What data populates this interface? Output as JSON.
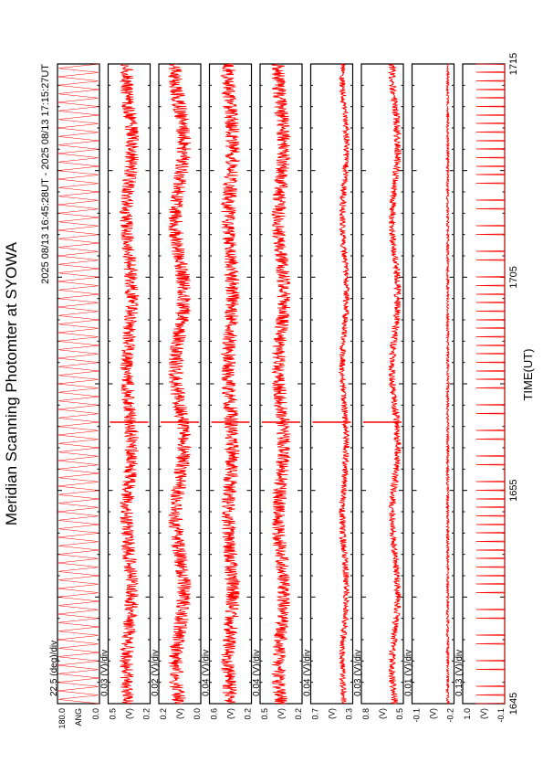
{
  "title": "Meridian Scanning Photomter at SYOWA",
  "time_range": "2025 08/13 16:45:28UT - 2025 08/13 17:15:27UT",
  "xlabel": "TIME(UT)",
  "colors": {
    "trace": "#ff0000",
    "frame": "#000000",
    "background": "#ffffff"
  },
  "chart_data": {
    "type": "line",
    "orientation": "rotated-90-counterclockwise",
    "x_ticks": [
      "1645",
      "1655",
      "1705",
      "1715"
    ],
    "xlim": [
      "16:45",
      "17:15"
    ],
    "grid": false,
    "panels": [
      {
        "id": "angle",
        "scale": "22.5 (deg)/div",
        "ylabel": "ANG",
        "ticks": [
          "0.0",
          "180.0"
        ],
        "ylim": [
          0,
          180
        ],
        "style": "scan-sweep",
        "level": 90,
        "amplitude": 90,
        "noise": 0,
        "period_min": 0.4,
        "spike_at": null
      },
      {
        "id": "ch1",
        "scale": "0.03 (V)/div",
        "ylabel": "(V)",
        "ticks": [
          "0.2",
          "0.5"
        ],
        "ylim": [
          0.2,
          0.5
        ],
        "style": "noise",
        "level": 0.35,
        "amplitude": 0.02,
        "noise": 0.05,
        "period_min": 0.4,
        "spike_at": 16.97
      },
      {
        "id": "ch2",
        "scale": "0.02 (V)/div",
        "ylabel": "(V)",
        "ticks": [
          "0.0",
          "0.2"
        ],
        "ylim": [
          0.0,
          0.2
        ],
        "style": "noise",
        "level": 0.1,
        "amplitude": 0.02,
        "noise": 0.035,
        "period_min": 0.4,
        "spike_at": 16.97
      },
      {
        "id": "ch3",
        "scale": "0.04 (V)/div",
        "ylabel": "(V)",
        "ticks": [
          "0.2",
          "0.6"
        ],
        "ylim": [
          0.2,
          0.6
        ],
        "style": "noise",
        "level": 0.4,
        "amplitude": 0.02,
        "noise": 0.07,
        "period_min": 0.4,
        "spike_at": 16.97
      },
      {
        "id": "ch4",
        "scale": "0.04 (V)/div",
        "ylabel": "(V)",
        "ticks": [
          "0.2",
          "0.5"
        ],
        "ylim": [
          0.2,
          0.5
        ],
        "style": "noise",
        "level": 0.35,
        "amplitude": 0.02,
        "noise": 0.05,
        "period_min": 0.4,
        "spike_at": 16.97
      },
      {
        "id": "ch5",
        "scale": "0.04 (V)/div",
        "ylabel": "(V)",
        "ticks": [
          "0.3",
          "0.7"
        ],
        "ylim": [
          0.3,
          0.7
        ],
        "style": "noise",
        "level": 0.38,
        "amplitude": 0.02,
        "noise": 0.03,
        "period_min": 0.4,
        "spike_at": 16.97
      },
      {
        "id": "ch6",
        "scale": "0.03 (V)/div",
        "ylabel": "(V)",
        "ticks": [
          "0.5",
          "0.8"
        ],
        "ylim": [
          0.5,
          0.8
        ],
        "style": "noise",
        "level": 0.56,
        "amplitude": 0.02,
        "noise": 0.025,
        "period_min": 0.4,
        "spike_at": 16.97
      },
      {
        "id": "ch7",
        "scale": "0.01 (V)/div",
        "ylabel": "(V)",
        "ticks": [
          "-0.2",
          "-0.1"
        ],
        "ylim": [
          -0.2,
          -0.1
        ],
        "style": "flat",
        "level": -0.185,
        "amplitude": 0,
        "noise": 0.003,
        "period_min": 0.4,
        "spike_at": null
      },
      {
        "id": "ch8",
        "scale": "0.13 (V)/div",
        "ylabel": "(V)",
        "ticks": [
          "-0.1",
          "1.0"
        ],
        "ylim": [
          -0.1,
          1.0
        ],
        "style": "pulses",
        "level": -0.1,
        "amplitude": 0.75,
        "noise": 0,
        "period_min": 0.4,
        "spike_at": null
      }
    ]
  }
}
